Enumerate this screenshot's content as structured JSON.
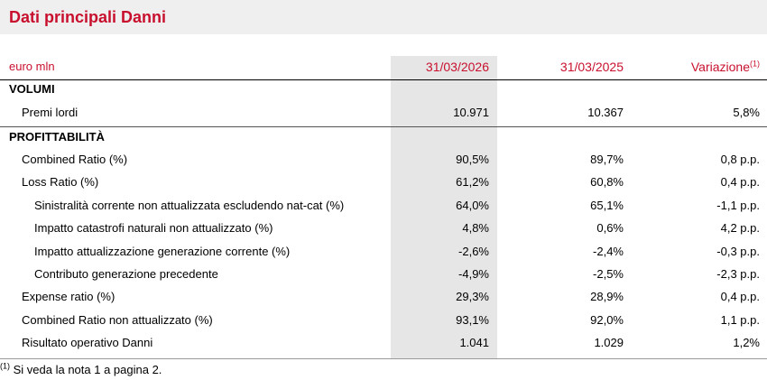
{
  "header": {
    "title": "Dati principali Danni"
  },
  "table": {
    "columns": [
      "euro mln",
      "31/03/2026",
      "31/03/2025",
      "Variazione"
    ],
    "column_note": "(1)",
    "sections": [
      {
        "title": "VOLUMI",
        "rows": [
          [
            "Premi lordi",
            "10.971",
            "10.367",
            "5,8%"
          ]
        ]
      },
      {
        "title": "PROFITTABILITÀ",
        "rows": [
          [
            "Combined Ratio (%)",
            "90,5%",
            "89,7%",
            "0,8 p.p."
          ],
          [
            "Loss Ratio (%)",
            "61,2%",
            "60,8%",
            "0,4 p.p."
          ],
          [
            "Sinistralità corrente non attualizzata escludendo nat-cat (%)",
            "64,0%",
            "65,1%",
            "-1,1 p.p."
          ],
          [
            "Impatto catastrofi naturali non attualizzato (%)",
            "4,8%",
            "0,6%",
            "4,2 p.p."
          ],
          [
            "Impatto attualizzazione generazione corrente (%)",
            "-2,6%",
            "-2,4%",
            "-0,3 p.p."
          ],
          [
            "Contributo generazione precedente",
            "-4,9%",
            "-2,5%",
            "-2,3 p.p."
          ],
          [
            "Expense ratio (%)",
            "29,3%",
            "28,9%",
            "0,4 p.p."
          ],
          [
            "Combined Ratio non attualizzato (%)",
            "93,1%",
            "92,0%",
            "1,1 p.p."
          ],
          [
            "Risultato operativo Danni",
            "1.041",
            "1.029",
            "1,2%"
          ]
        ]
      }
    ]
  },
  "footnote": {
    "marker": "(1)",
    "text": "Si veda la nota 1 a pagina 2."
  }
}
